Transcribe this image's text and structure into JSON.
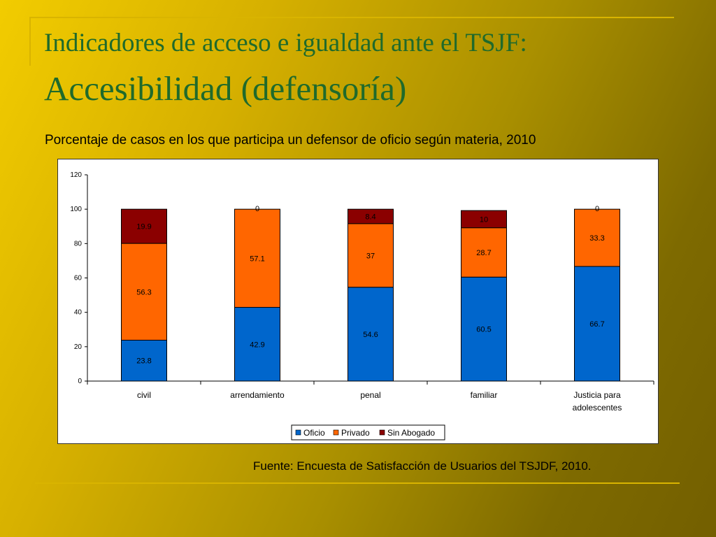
{
  "slide": {
    "title_line1": "Indicadores de acceso e igualdad ante el TSJF:",
    "title_line2": "Accesibilidad (defensoría)",
    "subtitle": "Porcentaje de casos en los que participa un defensor de oficio según materia, 2010",
    "source": "Fuente: Encuesta de Satisfacción de Usuarios del TSJDF, 2010."
  },
  "colors": {
    "Oficio": "#0066cc",
    "Privado": "#ff6600",
    "Sin Abogado": "#8b0000"
  },
  "chart_data": {
    "type": "bar",
    "stacked": true,
    "categories": [
      "civil",
      "arrendamiento",
      "penal",
      "familiar",
      "Justicia para adolescentes"
    ],
    "category_lines": [
      [
        "civil"
      ],
      [
        "arrendamiento"
      ],
      [
        "penal"
      ],
      [
        "familiar"
      ],
      [
        "Justicia para",
        "adolescentes"
      ]
    ],
    "series": [
      {
        "name": "Oficio",
        "values": [
          23.8,
          42.9,
          54.6,
          60.5,
          66.7
        ]
      },
      {
        "name": "Privado",
        "values": [
          56.3,
          57.1,
          37,
          28.7,
          33.3
        ]
      },
      {
        "name": "Sin Abogado",
        "values": [
          19.9,
          0,
          8.4,
          10,
          0
        ]
      }
    ],
    "ylim": [
      0,
      120
    ],
    "yticks": [
      0,
      20,
      40,
      60,
      80,
      100,
      120
    ],
    "legend": "bottom",
    "grid": false
  }
}
